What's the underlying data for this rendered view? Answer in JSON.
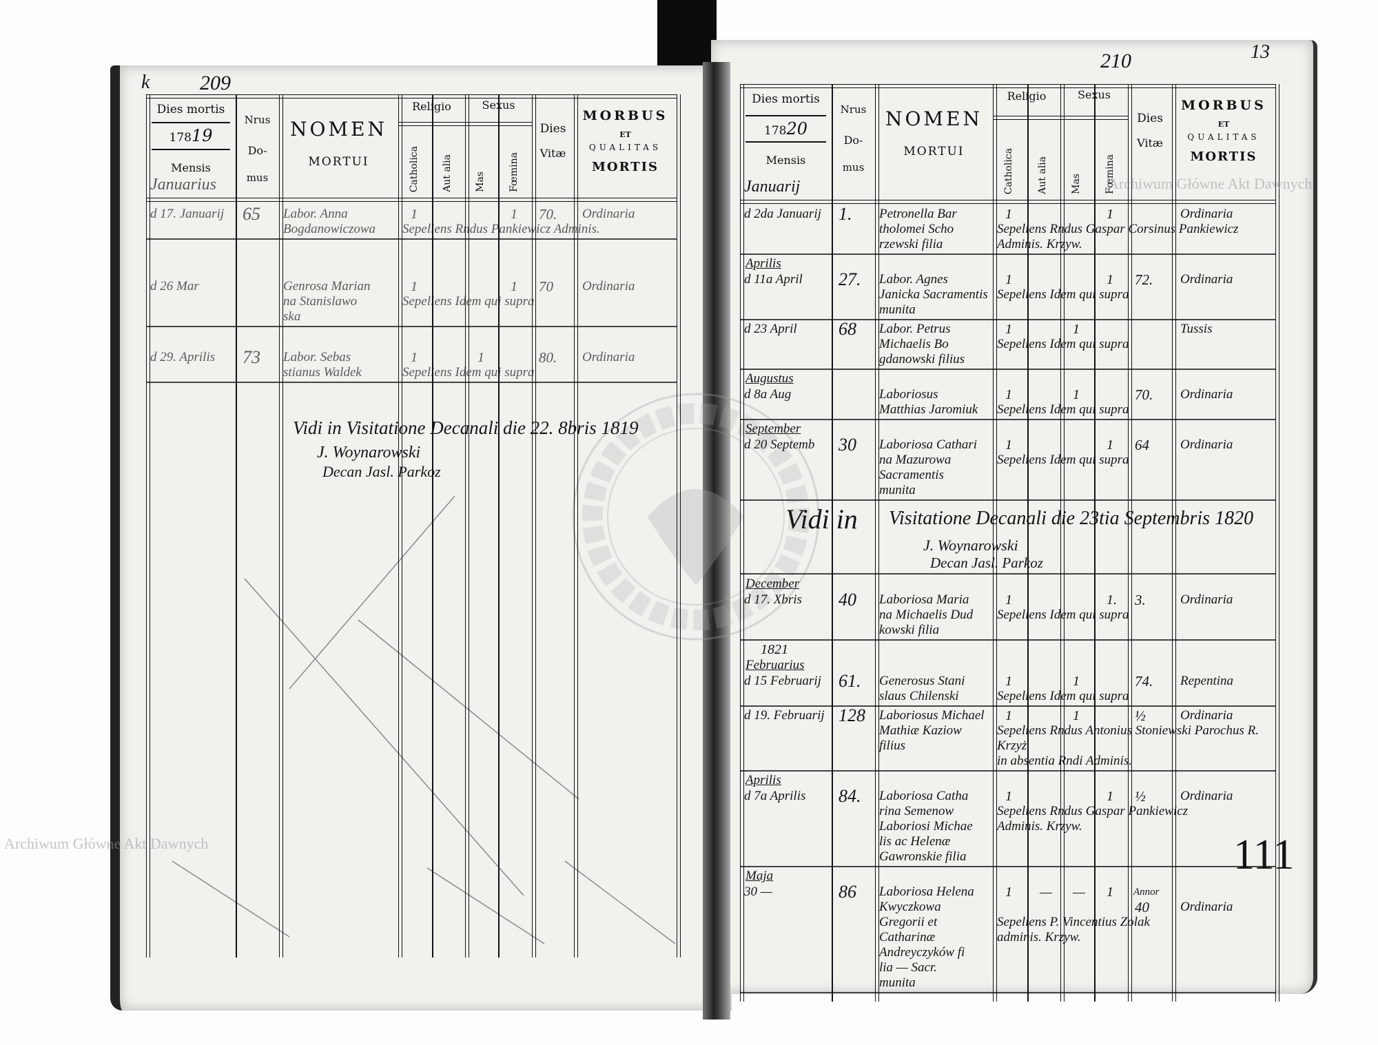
{
  "watermarks": {
    "top_right": "Archiwum Główne Akt Dawnych",
    "bottom_left": "Archiwum Główne Akt Dawnych",
    "stamp_text": "ARCHIWUM GŁÓWNE AKT DAWNYCH"
  },
  "header_labels": {
    "dies_mortis": "Dies mortis",
    "year_printed": "178",
    "mensis": "Mensis",
    "nrus": "Nrus",
    "do": "Do-",
    "mus": "mus",
    "nomen": "NOMEN",
    "mortui": "MORTUI",
    "religio": "Religio",
    "sexus": "Sexus",
    "catholica": "Catholica",
    "aut_alia": "Aut alia",
    "mas": "Mas",
    "foemina": "Fœmina",
    "dies": "Dies",
    "vitae": "Vitæ",
    "morbus": "MORBUS",
    "et": "ET",
    "qualitas": "QUALITAS",
    "mortis": "MORTIS"
  },
  "left_page": {
    "page_number": "209",
    "corner_mark": "k",
    "year_hand": "19",
    "month": "Januarius",
    "entries": [
      {
        "date": "d 17. Januarij",
        "nr": "65",
        "name": [
          "Labor. Anna",
          "Bogdanowiczowa"
        ],
        "burial": [
          "Sepeliens Rndus Pankiewicz Adminis."
        ],
        "catholica": "1",
        "aut_alia": "",
        "mas": "",
        "foemina": "1",
        "dies_vitae": "70.",
        "morbus": "Ordinaria"
      },
      {
        "date": "d 26 Mar",
        "nr": "",
        "name": [
          "Genrosa Marian",
          "na Stanislawo",
          "ska"
        ],
        "burial": [
          "Sepeliens Idem qui supra"
        ],
        "catholica": "1",
        "aut_alia": "",
        "mas": "",
        "foemina": "1",
        "dies_vitae": "70",
        "morbus": "Ordinaria"
      },
      {
        "date": "d 29. Aprilis",
        "nr": "73",
        "name": [
          "Labor. Sebas",
          "stianus Waldek"
        ],
        "burial": [
          "Sepeliens Idem qui supra"
        ],
        "catholica": "1",
        "aut_alia": "",
        "mas": "1",
        "foemina": "",
        "dies_vitae": "80.",
        "morbus": "Ordinaria"
      }
    ],
    "visitation": {
      "text": "Vidi in Visitatione Decanali die 22. 8bris 1819",
      "signature": "J. Woynarowski",
      "title": "Decan Jasl. Parkoz"
    }
  },
  "right_page": {
    "page_number": "210",
    "corner_mark": "13",
    "year_hand": "20",
    "month": "Januarij",
    "entries": [
      {
        "year": "",
        "month": "",
        "date": "d 2da Januarij",
        "nr": "1.",
        "name": [
          "Petronella Bar",
          "tholomei Scho",
          "rzewski filia"
        ],
        "burial": [
          "Sepeliens Rndus Gaspar Corsinus Pankiewicz",
          "Adminis. Krzyw."
        ],
        "catholica": "1",
        "aut_alia": "",
        "mas": "",
        "foemina": "1",
        "dies_vitae": "",
        "morbus": "Ordinaria"
      },
      {
        "year": "",
        "month": "Aprilis",
        "date": "d 11a April",
        "nr": "27.",
        "name": [
          "Labor. Agnes",
          "Janicka Sacramentis munita"
        ],
        "burial": [
          "Sepeliens Idem qui supra"
        ],
        "catholica": "1",
        "aut_alia": "",
        "mas": "",
        "foemina": "1",
        "dies_vitae": "72.",
        "morbus": "Ordinaria"
      },
      {
        "year": "",
        "month": "",
        "date": "d 23 April",
        "nr": "68",
        "name": [
          "Labor. Petrus",
          "Michaelis Bo",
          "gdanowski filius"
        ],
        "burial": [
          "Sepeliens Idem qui supra"
        ],
        "catholica": "1",
        "aut_alia": "",
        "mas": "1",
        "foemina": "",
        "dies_vitae": "",
        "morbus": "Tussis"
      },
      {
        "year": "",
        "month": "Augustus",
        "date": "d 8a Aug",
        "nr": "",
        "name": [
          "Laboriosus",
          "Matthias Jaromiuk"
        ],
        "burial": [
          "Sepeliens Idem qui supra"
        ],
        "catholica": "1",
        "aut_alia": "",
        "mas": "1",
        "foemina": "",
        "dies_vitae": "70.",
        "morbus": "Ordinaria"
      },
      {
        "year": "",
        "month": "September",
        "date": "d 20 Septemb",
        "nr": "30",
        "name": [
          "Laboriosa Cathari",
          "na Mazurowa",
          "Sacramentis",
          "munita"
        ],
        "burial": [
          "Sepeliens Idem qui supra"
        ],
        "catholica": "1",
        "aut_alia": "",
        "mas": "",
        "foemina": "1",
        "dies_vitae": "64",
        "morbus": "Ordinaria"
      },
      {
        "year": "",
        "month": "December",
        "date": "d 17. Xbris",
        "nr": "40",
        "name": [
          "Laboriosa Maria",
          "na Michaelis Dud",
          "kowski filia"
        ],
        "burial": [
          "Sepeliens Idem qui supra"
        ],
        "catholica": "1",
        "aut_alia": "",
        "mas": "",
        "foemina": "1.",
        "dies_vitae": "3.",
        "morbus": "Ordinaria"
      },
      {
        "year": "1821",
        "month": "Februarius",
        "date": "d 15 Februarij",
        "nr": "61.",
        "name": [
          "Generosus Stani",
          "slaus Chilenski"
        ],
        "burial": [
          "Sepeliens Idem qui supra"
        ],
        "catholica": "1",
        "aut_alia": "",
        "mas": "1",
        "foemina": "",
        "dies_vitae": "74.",
        "morbus": "Repentina"
      },
      {
        "year": "",
        "month": "",
        "date": "d 19. Februarij",
        "nr": "128",
        "name": [
          "Laboriosus Michael",
          "Mathiæ Kaziow",
          "filius"
        ],
        "burial": [
          "Sepeliens Rndus Antonius Stoniewski Parochus R. Krzyż",
          "in absentia Rndi Adminis."
        ],
        "catholica": "1",
        "aut_alia": "",
        "mas": "1",
        "foemina": "",
        "dies_vitae": "½",
        "morbus": "Ordinaria"
      },
      {
        "year": "",
        "month": "Aprilis",
        "date": "d 7a Aprilis",
        "nr": "84.",
        "name": [
          "Laboriosa Catha",
          "rina Semenow",
          "Laboriosi Michae",
          "lis ac Helenæ",
          "Gawronskie filia"
        ],
        "burial": [
          "Sepeliens Rndus Gaspar Pankiewicz",
          "Adminis. Krzyw."
        ],
        "catholica": "1",
        "aut_alia": "",
        "mas": "",
        "foemina": "1",
        "dies_vitae": "½",
        "morbus": "Ordinaria"
      },
      {
        "year": "",
        "month": "Maja",
        "date": "30 —",
        "nr": "86",
        "name": [
          "Laboriosa Helena Kwyczkowa",
          "Gregorii et Catharinæ",
          "Andreyczyków fi",
          "lia — Sacr.",
          "munita"
        ],
        "burial": [
          "Sepeliens P. Vincentius Zolak",
          "adminis. Krzyw."
        ],
        "catholica": "1",
        "aut_alia": "—",
        "mas": "—",
        "foemina": "1",
        "dies_vitae": "40",
        "dies_note": "Annor",
        "morbus": "Ordinaria"
      }
    ],
    "visitation": {
      "vidi": "Vidi in",
      "text": "Visitatione Decanali die 23tia Septembris 1820",
      "signature": "J. Woynarowski",
      "title": "Decan Jasl. Parkoz"
    },
    "margin_tally": "111"
  }
}
